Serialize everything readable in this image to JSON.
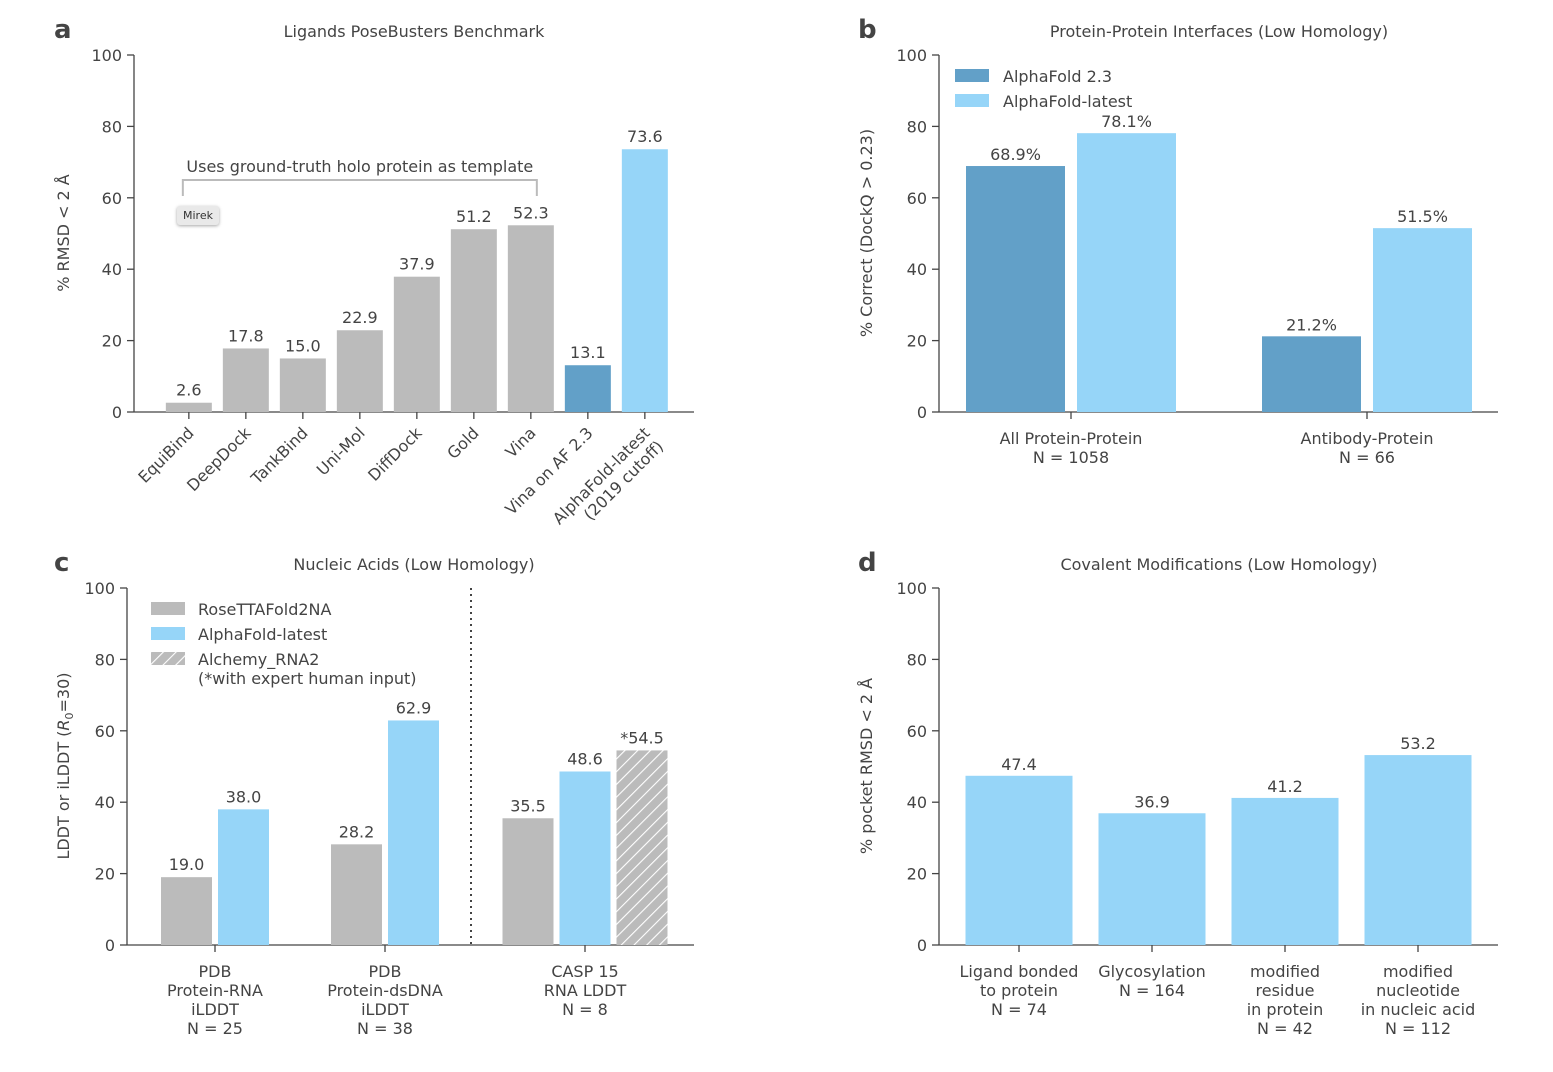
{
  "colors": {
    "gray": "#bbbbbb",
    "af23": "#62a0c8",
    "latest": "#96d5f8",
    "hatch": "#ffffff"
  },
  "watermark": "Mirek",
  "chart_data": [
    {
      "panel": "a",
      "type": "bar",
      "title": "Ligands PoseBusters Benchmark",
      "ylabel": "% RMSD < 2 Å",
      "ylim": [
        0,
        100
      ],
      "yticks": [
        0,
        20,
        40,
        60,
        80,
        100
      ],
      "categories": [
        "EquiBind",
        "DeepDock",
        "TankBind",
        "Uni-Mol",
        "DiffDock",
        "Gold",
        "Vina",
        "Vina on AF 2.3",
        "AlphaFold-latest\n(2019 cutoff)"
      ],
      "values": [
        2.6,
        17.8,
        15.0,
        22.9,
        37.9,
        51.2,
        52.3,
        13.1,
        73.6
      ],
      "labels": [
        "2.6",
        "17.8",
        "15.0",
        "22.9",
        "37.9",
        "51.2",
        "52.3",
        "13.1",
        "73.6"
      ],
      "bar_colors": [
        "gray",
        "gray",
        "gray",
        "gray",
        "gray",
        "gray",
        "gray",
        "af23",
        "latest"
      ],
      "annotation": "Uses ground-truth holo protein as template"
    },
    {
      "panel": "b",
      "type": "bar",
      "title": "Protein-Protein Interfaces (Low Homology)",
      "ylabel": "% Correct (DockQ > 0.23)",
      "ylim": [
        0,
        100
      ],
      "yticks": [
        0,
        20,
        40,
        60,
        80,
        100
      ],
      "categories": [
        "All Protein-Protein\nN = 1058",
        "Antibody-Protein\nN = 66"
      ],
      "series": [
        {
          "name": "AlphaFold 2.3",
          "color": "af23",
          "values": [
            68.9,
            21.2
          ],
          "labels": [
            "68.9%",
            "21.2%"
          ]
        },
        {
          "name": "AlphaFold-latest",
          "color": "latest",
          "values": [
            78.1,
            51.5
          ],
          "labels": [
            "78.1%",
            "51.5%"
          ]
        }
      ],
      "legend": "top-left"
    },
    {
      "panel": "c",
      "type": "bar",
      "title": "Nucleic Acids (Low Homology)",
      "ylabel": "LDDT or iLDDT (R₀=30)",
      "ylim": [
        0,
        100
      ],
      "yticks": [
        0,
        20,
        40,
        60,
        80,
        100
      ],
      "categories": [
        "PDB\nProtein-RNA\niLDDT\nN = 25",
        "PDB\nProtein-dsDNA\niLDDT\nN = 38",
        "CASP 15\nRNA LDDT\nN = 8"
      ],
      "series": [
        {
          "name": "RoseTTAFold2NA",
          "color": "gray",
          "values": [
            19.0,
            28.2,
            35.5
          ],
          "labels": [
            "19.0",
            "28.2",
            "35.5"
          ]
        },
        {
          "name": "AlphaFold-latest",
          "color": "latest",
          "values": [
            38.0,
            62.9,
            48.6
          ],
          "labels": [
            "38.0",
            "62.9",
            "48.6"
          ]
        },
        {
          "name": "Alchemy_RNA2\n(*with expert human input)",
          "color": "hatch",
          "values": [
            null,
            null,
            54.5
          ],
          "labels": [
            "",
            "",
            "*54.5"
          ]
        }
      ],
      "legend": "top-left"
    },
    {
      "panel": "d",
      "type": "bar",
      "title": "Covalent Modifications (Low Homology)",
      "ylabel": "% pocket RMSD < 2 Å",
      "ylim": [
        0,
        100
      ],
      "yticks": [
        0,
        20,
        40,
        60,
        80,
        100
      ],
      "categories": [
        "Ligand bonded\nto protein\nN = 74",
        "Glycosylation\nN = 164",
        "modified\nresidue\nin protein\nN = 42",
        "modified\nnucleotide\nin nucleic acid\nN = 112"
      ],
      "values": [
        47.4,
        36.9,
        41.2,
        53.2
      ],
      "labels": [
        "47.4",
        "36.9",
        "41.2",
        "53.2"
      ],
      "bar_colors": [
        "latest",
        "latest",
        "latest",
        "latest"
      ]
    }
  ]
}
